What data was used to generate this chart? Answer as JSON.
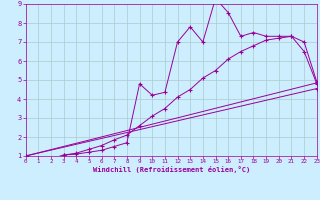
{
  "title": "",
  "xlabel": "Windchill (Refroidissement éolien,°C)",
  "background_color": "#cceeff",
  "grid_color": "#aacccc",
  "line_color": "#990099",
  "x_min": 0,
  "x_max": 23,
  "y_min": 1,
  "y_max": 9,
  "series": [
    {
      "x": [
        0,
        1,
        2,
        3,
        4,
        5,
        6,
        7,
        8,
        9,
        10,
        11,
        12,
        13,
        14,
        15,
        16,
        17,
        18,
        19,
        20,
        21,
        22,
        23
      ],
      "y": [
        1.0,
        0.85,
        0.75,
        1.05,
        1.1,
        1.2,
        1.3,
        1.5,
        1.7,
        4.8,
        4.2,
        4.35,
        7.0,
        7.8,
        7.0,
        9.3,
        8.55,
        7.3,
        7.5,
        7.3,
        7.3,
        7.3,
        6.5,
        4.8
      ]
    },
    {
      "x": [
        0,
        1,
        2,
        3,
        4,
        5,
        6,
        7,
        8,
        9,
        10,
        11,
        12,
        13,
        14,
        15,
        16,
        17,
        18,
        19,
        20,
        21,
        22,
        23
      ],
      "y": [
        1.0,
        0.9,
        0.85,
        1.05,
        1.15,
        1.35,
        1.55,
        1.85,
        2.1,
        2.6,
        3.1,
        3.5,
        4.1,
        4.5,
        5.1,
        5.5,
        6.1,
        6.5,
        6.8,
        7.1,
        7.2,
        7.3,
        7.0,
        4.9
      ]
    },
    {
      "x": [
        0,
        23
      ],
      "y": [
        1.0,
        4.85
      ]
    },
    {
      "x": [
        0,
        23
      ],
      "y": [
        1.0,
        4.55
      ]
    }
  ]
}
